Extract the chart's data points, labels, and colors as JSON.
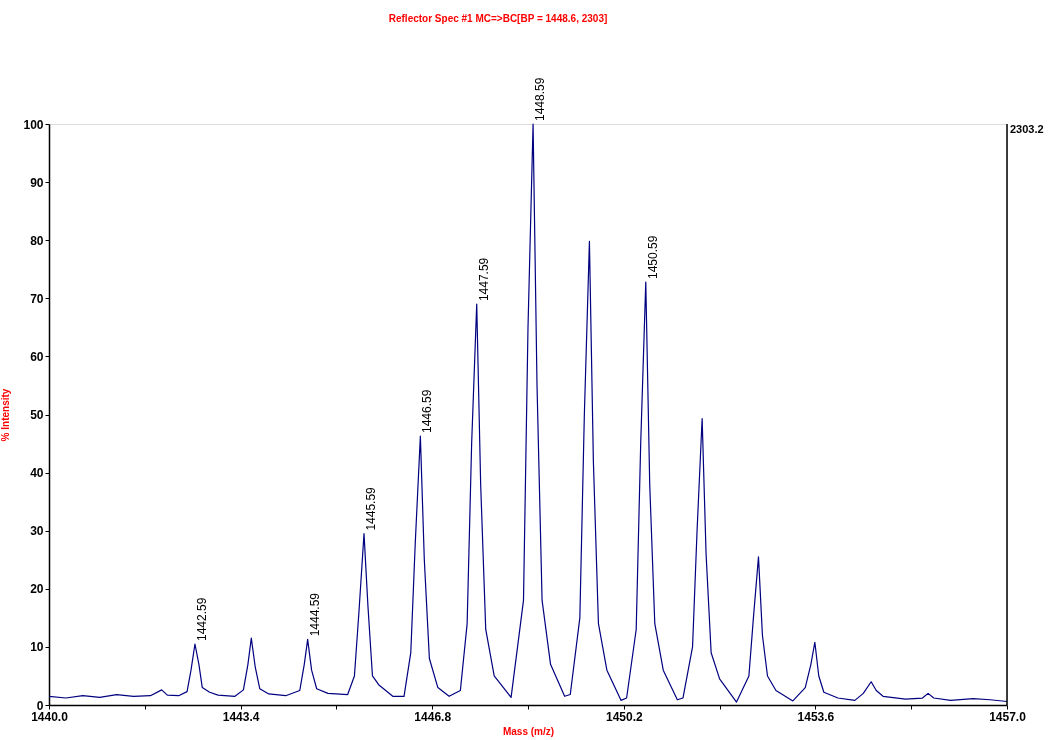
{
  "chart_data": {
    "type": "line",
    "title": "Reflector Spec #1 MC=>BC[BP = 1448.6, 2303]",
    "xlabel": "Mass (m/z)",
    "ylabel": "% Intensity",
    "x": [
      1440,
      1440.3,
      1440.6,
      1440.9,
      1441.2,
      1441.5,
      1441.8,
      1442.0,
      1442.1,
      1442.3,
      1442.45,
      1442.52,
      1442.59,
      1442.66,
      1442.72,
      1442.85,
      1443.0,
      1443.3,
      1443.45,
      1443.53,
      1443.59,
      1443.66,
      1443.74,
      1443.9,
      1444.2,
      1444.45,
      1444.53,
      1444.59,
      1444.66,
      1444.75,
      1444.95,
      1445.3,
      1445.42,
      1445.5,
      1445.59,
      1445.66,
      1445.74,
      1445.85,
      1446.1,
      1446.3,
      1446.42,
      1446.5,
      1446.59,
      1446.66,
      1446.75,
      1446.9,
      1447.1,
      1447.3,
      1447.42,
      1447.5,
      1447.59,
      1447.66,
      1447.75,
      1447.9,
      1448.2,
      1448.42,
      1448.5,
      1448.59,
      1448.66,
      1448.75,
      1448.9,
      1449.15,
      1449.25,
      1449.42,
      1449.5,
      1449.59,
      1449.66,
      1449.75,
      1449.9,
      1450.15,
      1450.25,
      1450.42,
      1450.5,
      1450.59,
      1450.66,
      1450.75,
      1450.9,
      1451.15,
      1451.25,
      1451.42,
      1451.5,
      1451.59,
      1451.66,
      1451.75,
      1451.9,
      1452.2,
      1452.42,
      1452.5,
      1452.59,
      1452.66,
      1452.75,
      1452.9,
      1453.2,
      1453.42,
      1453.52,
      1453.59,
      1453.66,
      1453.75,
      1454.0,
      1454.3,
      1454.45,
      1454.59,
      1454.68,
      1454.8,
      1455.2,
      1455.5,
      1455.6,
      1455.7,
      1456.0,
      1456.4,
      1456.7,
      1457.0
    ],
    "series": [
      {
        "color": "#000080",
        "values": [
          1.5,
          1.2,
          1.6,
          1.3,
          1.8,
          1.5,
          1.6,
          2.6,
          1.7,
          1.6,
          2.3,
          6,
          10.5,
          7,
          3,
          2.2,
          1.7,
          1.5,
          2.6,
          7,
          11.5,
          6.5,
          2.8,
          1.9,
          1.6,
          2.5,
          7,
          11.3,
          6,
          2.8,
          2.0,
          1.8,
          5,
          16,
          29.5,
          17,
          5,
          3.5,
          1.5,
          1.5,
          9,
          28,
          46.3,
          25,
          8,
          3,
          1.5,
          2.5,
          14,
          45,
          69,
          38,
          13,
          5,
          1.3,
          18,
          65,
          100,
          55,
          18,
          7,
          1.5,
          1.8,
          15,
          50,
          79.8,
          42,
          14,
          6,
          0.8,
          1.2,
          13,
          45,
          72.8,
          38,
          14,
          6,
          0.9,
          1.2,
          10,
          30,
          49.3,
          26,
          9,
          4.5,
          0.5,
          5,
          15,
          25.5,
          12,
          5,
          2.5,
          0.7,
          3,
          7,
          10.8,
          5,
          2.2,
          1.2,
          0.8,
          2,
          4,
          2.5,
          1.5,
          1.0,
          1.2,
          2.0,
          1.2,
          0.8,
          1.1,
          0.9,
          0.6
        ]
      }
    ],
    "xlim": [
      1440.0,
      1457.0
    ],
    "xticks": [
      {
        "value": 1440.0,
        "label": "1440.0"
      },
      {
        "value": 1441.7,
        "label": null
      },
      {
        "value": 1443.4,
        "label": "1443.4"
      },
      {
        "value": 1445.1,
        "label": null
      },
      {
        "value": 1446.8,
        "label": "1446.8"
      },
      {
        "value": 1448.5,
        "label": null
      },
      {
        "value": 1450.2,
        "label": "1450.2"
      },
      {
        "value": 1451.9,
        "label": null
      },
      {
        "value": 1453.6,
        "label": "1453.6"
      },
      {
        "value": 1455.3,
        "label": null
      },
      {
        "value": 1457.0,
        "label": "1457.0"
      }
    ],
    "ylim": [
      0,
      100
    ],
    "yticks": [
      0,
      10,
      20,
      30,
      40,
      50,
      60,
      70,
      80,
      90,
      100
    ],
    "grid": false,
    "marker": "none",
    "line_style": "solid",
    "annotations": [
      "2303.2",
      {
        "text": "1442.59",
        "x": 1442.59,
        "y": 10.5
      },
      {
        "text": "1444.59",
        "x": 1444.59,
        "y": 11.3
      },
      {
        "text": "1445.59",
        "x": 1445.59,
        "y": 29.5
      },
      {
        "text": "1446.59",
        "x": 1446.59,
        "y": 46.3
      },
      {
        "text": "1447.59",
        "x": 1447.59,
        "y": 69
      },
      {
        "text": "1448.59",
        "x": 1448.59,
        "y": 100
      },
      {
        "text": "1450.59",
        "x": 1450.59,
        "y": 72.8
      }
    ]
  }
}
